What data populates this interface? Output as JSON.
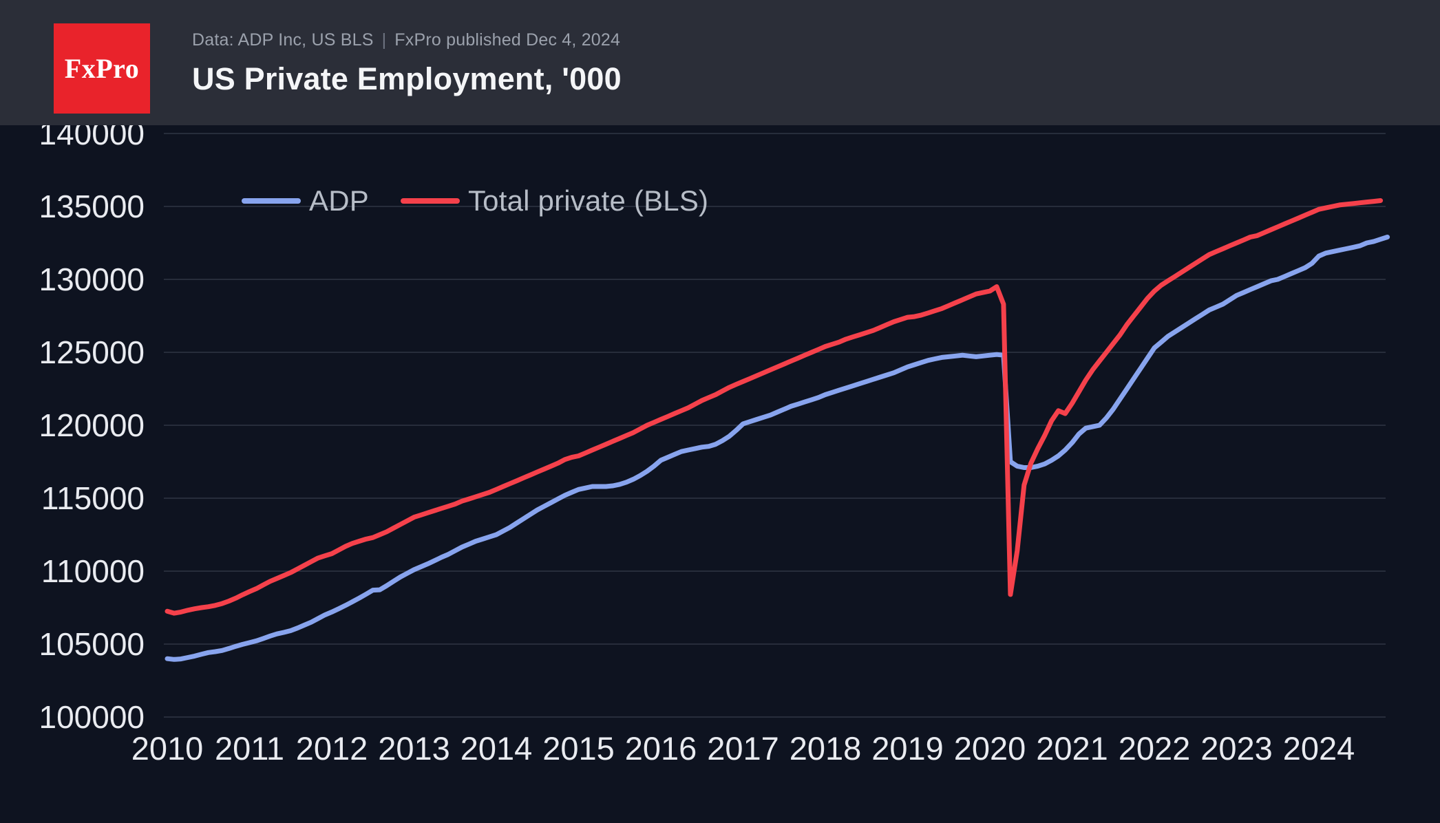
{
  "header": {
    "logo_text": "FxPro",
    "subtitle_left": "Data: ADP Inc, US BLS",
    "subtitle_separator": "|",
    "subtitle_right": "FxPro published Dec 4, 2024",
    "title": "US Private Employment, '000"
  },
  "colors": {
    "page_bg": "#0e1320",
    "header_bg": "#2b2e38",
    "logo_red": "#e9232b",
    "adp_line": "#88a4ee",
    "bls_line": "#f5414b",
    "gridline": "#272d3b",
    "axis_label": "#e9ebf0",
    "legend_label": "#b7bdc7"
  },
  "legend": [
    {
      "label": "ADP",
      "color": "#88a4ee"
    },
    {
      "label": "Total private (BLS)",
      "color": "#f5414b"
    }
  ],
  "chart_data": {
    "type": "line",
    "title": "US Private Employment, '000",
    "xlabel": "",
    "ylabel": "",
    "grid": "horizontal",
    "legend_position": "top-left-inside",
    "ylim": [
      100000,
      140000
    ],
    "y_ticks": [
      100000,
      105000,
      110000,
      115000,
      120000,
      125000,
      130000,
      135000,
      140000
    ],
    "x_tick_years": [
      2010,
      2011,
      2012,
      2013,
      2014,
      2015,
      2016,
      2017,
      2018,
      2019,
      2020,
      2021,
      2022,
      2023,
      2024
    ],
    "x_start": "2010-01",
    "x_step_months": 1,
    "series": [
      {
        "name": "ADP",
        "color": "#88a4ee",
        "values": [
          104000,
          103950,
          103980,
          104080,
          104180,
          104300,
          104420,
          104480,
          104560,
          104700,
          104850,
          104980,
          105100,
          105220,
          105380,
          105550,
          105700,
          105800,
          105920,
          106100,
          106300,
          106500,
          106750,
          107000,
          107200,
          107420,
          107650,
          107900,
          108150,
          108420,
          108700,
          108720,
          109000,
          109300,
          109600,
          109850,
          110100,
          110300,
          110500,
          110720,
          110950,
          111150,
          111400,
          111650,
          111850,
          112050,
          112200,
          112350,
          112500,
          112750,
          113000,
          113300,
          113600,
          113900,
          114200,
          114450,
          114700,
          114950,
          115200,
          115400,
          115600,
          115700,
          115800,
          115800,
          115800,
          115850,
          115950,
          116100,
          116300,
          116550,
          116850,
          117200,
          117600,
          117800,
          118000,
          118200,
          118300,
          118400,
          118500,
          118550,
          118700,
          118950,
          119250,
          119650,
          120100,
          120250,
          120400,
          120550,
          120700,
          120900,
          121100,
          121300,
          121450,
          121600,
          121750,
          121900,
          122100,
          122250,
          122400,
          122550,
          122700,
          122850,
          123000,
          123150,
          123300,
          123450,
          123600,
          123800,
          124000,
          124150,
          124300,
          124450,
          124550,
          124650,
          124700,
          124750,
          124800,
          124750,
          124700,
          124750,
          124800,
          124850,
          124800,
          117500,
          117200,
          117100,
          117100,
          117200,
          117350,
          117600,
          117900,
          118300,
          118800,
          119400,
          119800,
          119900,
          120000,
          120500,
          121100,
          121800,
          122500,
          123200,
          123900,
          124600,
          125300,
          125700,
          126100,
          126400,
          126700,
          127000,
          127300,
          127600,
          127900,
          128100,
          128300,
          128600,
          128900,
          129100,
          129300,
          129500,
          129700,
          129900,
          130000,
          130200,
          130400,
          130600,
          130800,
          131100,
          131600,
          131800,
          131900,
          132000,
          132100,
          132200,
          132300,
          132500,
          132600,
          132750,
          132900
        ]
      },
      {
        "name": "Total private (BLS)",
        "color": "#f5414b",
        "values": [
          107250,
          107120,
          107200,
          107320,
          107420,
          107500,
          107560,
          107650,
          107780,
          107950,
          108150,
          108380,
          108600,
          108800,
          109050,
          109300,
          109500,
          109700,
          109900,
          110150,
          110400,
          110650,
          110900,
          111050,
          111200,
          111450,
          111700,
          111900,
          112050,
          112200,
          112300,
          112500,
          112700,
          112950,
          113200,
          113450,
          113700,
          113850,
          114000,
          114150,
          114300,
          114450,
          114600,
          114800,
          114950,
          115100,
          115250,
          115400,
          115600,
          115800,
          116000,
          116200,
          116400,
          116600,
          116800,
          117000,
          117200,
          117400,
          117650,
          117800,
          117900,
          118100,
          118300,
          118500,
          118700,
          118900,
          119100,
          119300,
          119500,
          119750,
          120000,
          120200,
          120400,
          120600,
          120800,
          121000,
          121200,
          121450,
          121700,
          121900,
          122100,
          122350,
          122600,
          122800,
          123000,
          123200,
          123400,
          123600,
          123800,
          124000,
          124200,
          124400,
          124600,
          124800,
          125000,
          125200,
          125400,
          125550,
          125700,
          125900,
          126050,
          126200,
          126350,
          126500,
          126700,
          126900,
          127100,
          127250,
          127400,
          127450,
          127550,
          127700,
          127850,
          128000,
          128200,
          128400,
          128600,
          128800,
          129000,
          129100,
          129200,
          129500,
          128300,
          108400,
          111400,
          115900,
          117400,
          118400,
          119300,
          120300,
          121000,
          120800,
          121500,
          122300,
          123100,
          123800,
          124400,
          125000,
          125600,
          126200,
          126900,
          127500,
          128100,
          128700,
          129200,
          129600,
          129900,
          130200,
          130500,
          130800,
          131100,
          131400,
          131700,
          131900,
          132100,
          132300,
          132500,
          132700,
          132900,
          133000,
          133200,
          133400,
          133600,
          133800,
          134000,
          134200,
          134400,
          134600,
          134800,
          134900,
          135000,
          135100,
          135150,
          135200,
          135250,
          135300,
          135350,
          135400
        ]
      }
    ]
  }
}
